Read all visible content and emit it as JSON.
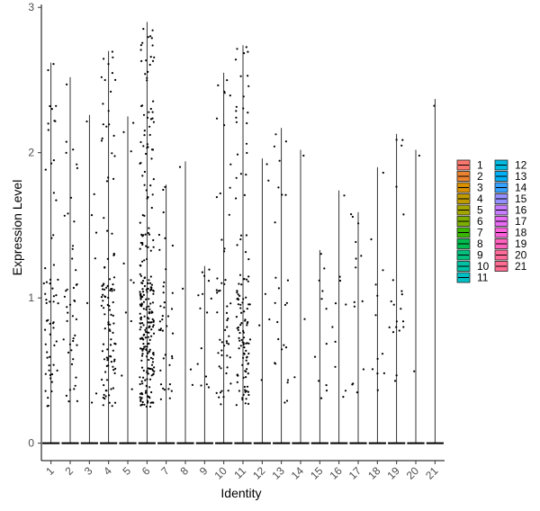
{
  "chart_data": {
    "type": "violin",
    "xlabel": "Identity",
    "ylabel": "Expression Level",
    "ylim": [
      -0.12,
      3.02
    ],
    "yticks": [
      0,
      1,
      2,
      3
    ],
    "categories": [
      "1",
      "2",
      "3",
      "4",
      "5",
      "6",
      "7",
      "8",
      "9",
      "10",
      "11",
      "12",
      "13",
      "14",
      "15",
      "16",
      "17",
      "18",
      "19",
      "20",
      "21"
    ],
    "max_values": [
      2.62,
      2.52,
      2.26,
      2.7,
      2.25,
      2.9,
      1.78,
      1.94,
      1.22,
      2.55,
      2.74,
      1.96,
      2.17,
      2.02,
      1.33,
      1.74,
      1.59,
      1.9,
      2.13,
      2.02,
      2.37
    ],
    "point_density": [
      60,
      45,
      8,
      110,
      10,
      260,
      40,
      4,
      15,
      55,
      120,
      6,
      25,
      3,
      12,
      10,
      14,
      12,
      20,
      2,
      1
    ],
    "legend": {
      "position": "right",
      "columns": 2,
      "entries": [
        {
          "label": "1",
          "color": "#F8766D"
        },
        {
          "label": "2",
          "color": "#EA8331"
        },
        {
          "label": "3",
          "color": "#D89000"
        },
        {
          "label": "4",
          "color": "#C09B00"
        },
        {
          "label": "5",
          "color": "#A3A500"
        },
        {
          "label": "6",
          "color": "#7CAE00"
        },
        {
          "label": "7",
          "color": "#39B600"
        },
        {
          "label": "8",
          "color": "#00BB4E"
        },
        {
          "label": "9",
          "color": "#00BF7D"
        },
        {
          "label": "10",
          "color": "#00C1A3"
        },
        {
          "label": "11",
          "color": "#00BFC4"
        },
        {
          "label": "12",
          "color": "#00BAE0"
        },
        {
          "label": "13",
          "color": "#00B0F6"
        },
        {
          "label": "14",
          "color": "#35A2FF"
        },
        {
          "label": "15",
          "color": "#9590FF"
        },
        {
          "label": "16",
          "color": "#C77CFF"
        },
        {
          "label": "17",
          "color": "#E76BF3"
        },
        {
          "label": "18",
          "color": "#FA62DB"
        },
        {
          "label": "19",
          "color": "#FF62BC"
        },
        {
          "label": "20",
          "color": "#FF6A98"
        },
        {
          "label": "21",
          "color": "#FF6C91"
        }
      ]
    },
    "grid": false
  }
}
